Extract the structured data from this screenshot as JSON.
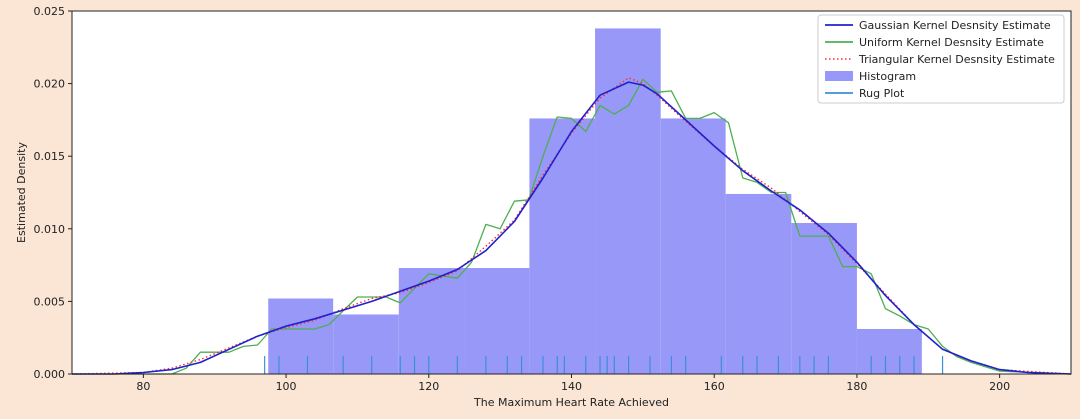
{
  "chart_data": {
    "type": "area",
    "title": "",
    "xlabel": "The Maximum Heart Rate Achieved",
    "ylabel": "Estimated Density",
    "xlim": [
      70,
      210
    ],
    "ylim": [
      0,
      0.025
    ],
    "x_ticks": [
      80,
      100,
      120,
      140,
      160,
      180,
      200
    ],
    "y_ticks": [
      0.0,
      0.005,
      0.01,
      0.015,
      0.02,
      0.025
    ],
    "y_tick_labels": [
      "0.000",
      "0.005",
      "0.010",
      "0.015",
      "0.020",
      "0.025"
    ],
    "grid": false,
    "legend_position": "top-right",
    "legend": [
      {
        "label": "Gaussian Kernel Desnsity Estimate",
        "style": "line",
        "color": "#2020d0"
      },
      {
        "label": "Uniform Kernel Desnsity Estimate",
        "style": "line",
        "color": "#4caf50"
      },
      {
        "label": "Triangular Kernel Desnsity Estimate",
        "style": "dotted",
        "color": "#ff2a2a"
      },
      {
        "label": "Histogram",
        "style": "patch",
        "color": "#9898f8"
      },
      {
        "label": "Rug Plot",
        "style": "line",
        "color": "#3b8fd9"
      }
    ],
    "histogram": {
      "name": "Histogram",
      "color": "#9898f8",
      "bins": [
        {
          "x0": 97.5,
          "x1": 106.6,
          "density": 0.0052
        },
        {
          "x0": 106.6,
          "x1": 115.8,
          "density": 0.0041
        },
        {
          "x0": 115.8,
          "x1": 125.0,
          "density": 0.0073
        },
        {
          "x0": 125.0,
          "x1": 134.1,
          "density": 0.0073
        },
        {
          "x0": 134.1,
          "x1": 143.3,
          "density": 0.0176
        },
        {
          "x0": 143.3,
          "x1": 152.5,
          "density": 0.0238
        },
        {
          "x0": 152.5,
          "x1": 161.6,
          "density": 0.0176
        },
        {
          "x0": 161.6,
          "x1": 170.8,
          "density": 0.0124
        },
        {
          "x0": 170.8,
          "x1": 180.0,
          "density": 0.0104
        },
        {
          "x0": 180.0,
          "x1": 189.1,
          "density": 0.0031
        }
      ]
    },
    "series": [
      {
        "name": "Gaussian Kernel Desnsity Estimate",
        "color": "#2020d0",
        "x": [
          70,
          76,
          80,
          84,
          88,
          92,
          96,
          100,
          104,
          108,
          112,
          116,
          120,
          124,
          128,
          132,
          136,
          140,
          144,
          148,
          150,
          152,
          156,
          160,
          164,
          168,
          172,
          176,
          180,
          184,
          188,
          192,
          196,
          200,
          204,
          210
        ],
        "y": [
          0,
          0,
          0.0001,
          0.0003,
          0.0008,
          0.0017,
          0.0026,
          0.0033,
          0.0038,
          0.0044,
          0.005,
          0.0057,
          0.0064,
          0.0072,
          0.0085,
          0.0105,
          0.0135,
          0.0167,
          0.0192,
          0.0201,
          0.0199,
          0.0193,
          0.0175,
          0.0157,
          0.014,
          0.0126,
          0.0113,
          0.0097,
          0.0077,
          0.0054,
          0.0034,
          0.0017,
          0.0009,
          0.0003,
          0.0001,
          0
        ]
      },
      {
        "name": "Uniform Kernel Desnsity Estimate",
        "color": "#4caf50",
        "x": [
          70,
          84,
          86,
          88,
          92,
          94,
          96,
          98,
          100,
          104,
          106,
          110,
          114,
          116,
          120,
          124,
          126,
          128,
          130,
          132,
          134,
          136,
          138,
          140,
          142,
          144,
          146,
          148,
          150,
          152,
          154,
          156,
          158,
          160,
          162,
          164,
          166,
          168,
          170,
          172,
          174,
          176,
          178,
          180,
          182,
          184,
          186,
          188,
          190,
          192,
          194,
          196,
          200,
          210
        ],
        "y": [
          0,
          0,
          0.0004,
          0.0015,
          0.0015,
          0.0019,
          0.002,
          0.0031,
          0.0031,
          0.0031,
          0.0034,
          0.0053,
          0.0053,
          0.0049,
          0.0069,
          0.0066,
          0.0077,
          0.0103,
          0.01,
          0.0119,
          0.012,
          0.015,
          0.0177,
          0.0176,
          0.0167,
          0.0185,
          0.0179,
          0.0185,
          0.0203,
          0.0194,
          0.0195,
          0.0176,
          0.0176,
          0.018,
          0.0173,
          0.0135,
          0.0132,
          0.0125,
          0.0125,
          0.0095,
          0.0095,
          0.0095,
          0.0074,
          0.0074,
          0.0069,
          0.0045,
          0.004,
          0.0034,
          0.0031,
          0.0019,
          0.0012,
          0.0008,
          0.0002,
          0
        ]
      },
      {
        "name": "Triangular Kernel Desnsity Estimate",
        "color": "#ff2a2a",
        "x": [
          70,
          80,
          84,
          88,
          92,
          96,
          100,
          104,
          108,
          112,
          116,
          120,
          124,
          128,
          132,
          136,
          140,
          144,
          148,
          150,
          152,
          156,
          160,
          164,
          168,
          172,
          176,
          180,
          184,
          188,
          192,
          196,
          200,
          210
        ],
        "y": [
          0,
          0.0001,
          0.0004,
          0.001,
          0.0018,
          0.0026,
          0.0032,
          0.0037,
          0.0045,
          0.0052,
          0.0056,
          0.0063,
          0.0071,
          0.0088,
          0.0106,
          0.0137,
          0.0166,
          0.019,
          0.0204,
          0.02,
          0.0192,
          0.0174,
          0.0157,
          0.0141,
          0.0128,
          0.0112,
          0.0096,
          0.0076,
          0.0055,
          0.0034,
          0.0017,
          0.0009,
          0.0003,
          0
        ]
      }
    ],
    "rug": {
      "name": "Rug Plot",
      "color": "#3b8fd9",
      "x": [
        97,
        99,
        103,
        108,
        112,
        116,
        118,
        120,
        124,
        128,
        131,
        133,
        136,
        138,
        139,
        142,
        144,
        145,
        146,
        148,
        151,
        154,
        156,
        161,
        164,
        166,
        169,
        172,
        174,
        176,
        182,
        184,
        186,
        188,
        192
      ]
    }
  }
}
